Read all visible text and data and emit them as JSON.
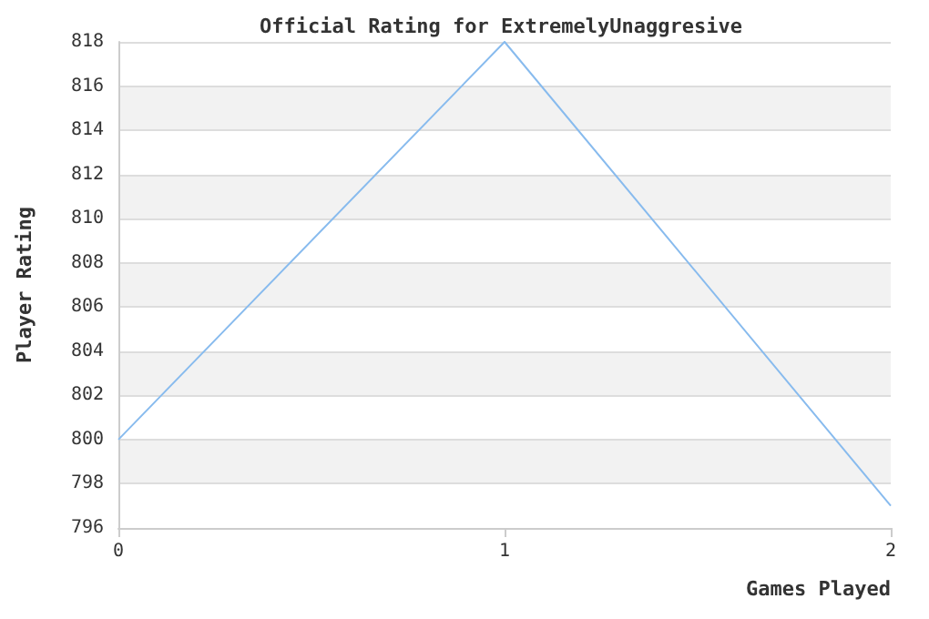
{
  "chart_data": {
    "type": "line",
    "title": "Official Rating for ExtremelyUnaggresive",
    "xlabel": "Games Played",
    "ylabel": "Player Rating",
    "x": [
      0,
      1,
      2
    ],
    "series": [
      {
        "color": "#88bbee",
        "values": [
          800,
          818,
          797
        ]
      }
    ],
    "xlim": [
      0,
      2
    ],
    "xticks": [
      0,
      1,
      2
    ],
    "ylim": [
      796,
      818
    ],
    "yticks": [
      796,
      798,
      800,
      802,
      804,
      806,
      808,
      810,
      812,
      814,
      816,
      818
    ],
    "grid": "y",
    "marker": "none",
    "line_style": "solid"
  }
}
